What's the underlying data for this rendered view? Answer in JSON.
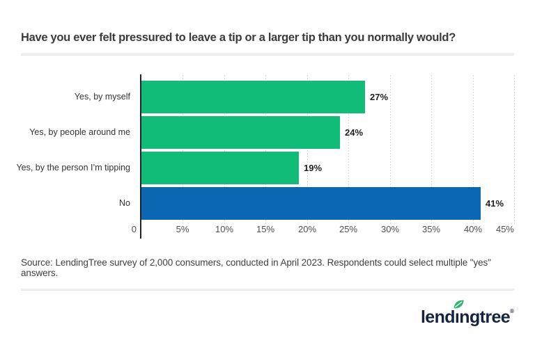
{
  "header": {
    "title": "Have you ever felt pressured to leave a tip or a larger tip than you normally would?"
  },
  "chart_data": {
    "type": "bar",
    "orientation": "horizontal",
    "title": "Have you ever felt pressured to leave a tip or a larger tip than you normally would?",
    "categories": [
      "Yes, by myself",
      "Yes, by people around me",
      "Yes, by the person I’m tipping",
      "No"
    ],
    "values": [
      27,
      24,
      19,
      41
    ],
    "value_labels": [
      "27%",
      "24%",
      "19%",
      "41%"
    ],
    "bar_colors": [
      "#10bc77",
      "#10bc77",
      "#10bc77",
      "#0b67b2"
    ],
    "xlim": [
      0,
      45
    ],
    "x_ticks": [
      {
        "value": 0,
        "label": "0"
      },
      {
        "value": 5,
        "label": "5%"
      },
      {
        "value": 10,
        "label": "10%"
      },
      {
        "value": 15,
        "label": "15%"
      },
      {
        "value": 20,
        "label": "20%"
      },
      {
        "value": 25,
        "label": "25%"
      },
      {
        "value": 30,
        "label": "30%"
      },
      {
        "value": 35,
        "label": "35%"
      },
      {
        "value": 40,
        "label": "40%"
      },
      {
        "value": 45,
        "label": "45%"
      }
    ],
    "grid": true,
    "legend_position": "none",
    "value_label_position": "outside-end",
    "category_label_alignment": "right"
  },
  "footer": {
    "source_note": "Source: LendingTree survey of 2,000 consumers, conducted in April 2023. Respondents could select multiple \"yes\" answers."
  },
  "logo": {
    "text": "lendingtree",
    "registered_mark": "®"
  },
  "colors": {
    "bar_green": "#10bc77",
    "bar_blue": "#0b67b2",
    "axis_line": "#222222",
    "gridline": "#d8d8d8",
    "divider": "#efefef",
    "title_text": "#3b3b3b",
    "category_text": "#333333",
    "tick_text": "#4f4f4f",
    "value_text": "#1f1f1f",
    "logo_navy": "#15233f",
    "leaf_green": "#2eb46b"
  }
}
